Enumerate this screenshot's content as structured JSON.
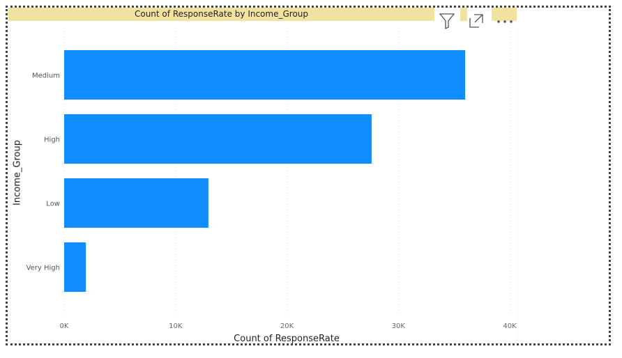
{
  "visual": {
    "toolbar": {
      "filter_icon": "filter-icon",
      "focus_icon": "focus-mode-icon",
      "more_icon": "more-options-icon"
    },
    "title_bg": "#f0e3a0"
  },
  "chart_data": {
    "type": "bar",
    "orientation": "horizontal",
    "title": "Count of ResponseRate by Income_Group",
    "xlabel": "Count of ResponseRate",
    "ylabel": "Income_Group",
    "categories": [
      "Medium",
      "High",
      "Low",
      "Very High"
    ],
    "values": [
      36000,
      27600,
      12950,
      1950
    ],
    "xlim": [
      0,
      40000
    ],
    "x_ticks": [
      0,
      10000,
      20000,
      30000,
      40000
    ],
    "x_tick_labels": [
      "0K",
      "10K",
      "20K",
      "30K",
      "40K"
    ],
    "bar_color": "#118dff",
    "grid": "vertical-dotted"
  }
}
